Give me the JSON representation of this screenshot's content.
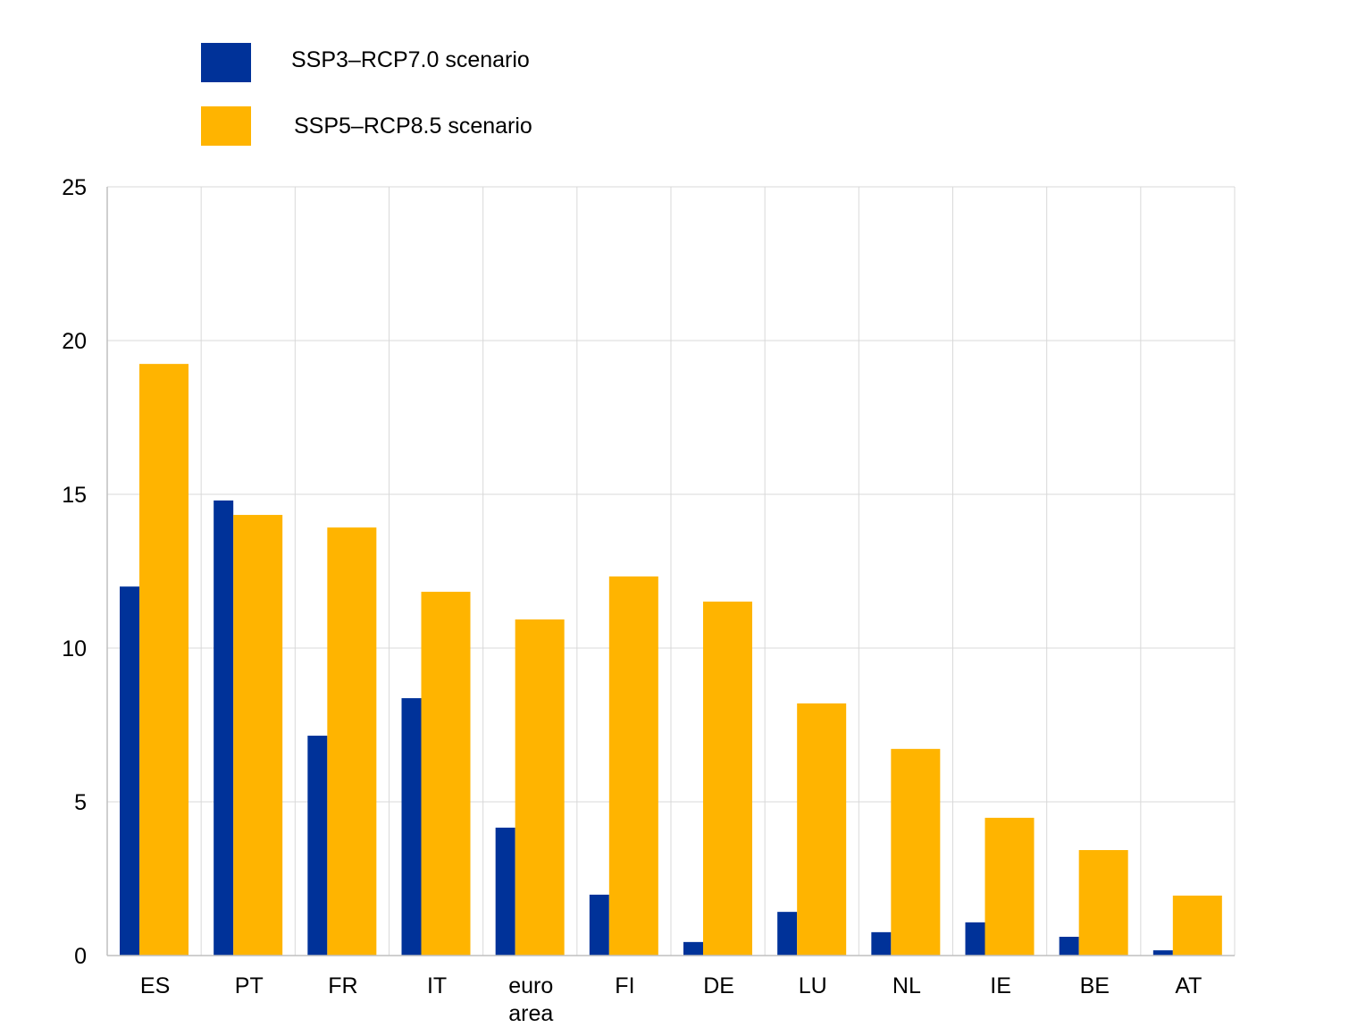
{
  "chart_data": {
    "type": "bar",
    "title": "",
    "xlabel": "",
    "ylabel": "",
    "ylim": [
      0,
      25
    ],
    "yticks": [
      0,
      5,
      10,
      15,
      20,
      25
    ],
    "grid": true,
    "legend_position": "top-left",
    "categories": [
      "ES",
      "PT",
      "FR",
      "IT",
      "euro area",
      "FI",
      "DE",
      "LU",
      "NL",
      "IE",
      "BE",
      "AT"
    ],
    "series": [
      {
        "name": "SSP3–RCP7.0 scenario",
        "color": "#003299",
        "values": [
          12.0,
          14.8,
          7.15,
          8.37,
          4.16,
          1.98,
          0.44,
          1.42,
          0.76,
          1.08,
          0.61,
          0.17
        ]
      },
      {
        "name": "SSP5–RCP8.5 scenario",
        "color": "#FFB400",
        "values": [
          19.24,
          14.33,
          13.92,
          11.83,
          10.93,
          12.33,
          11.51,
          8.2,
          6.72,
          4.48,
          3.43,
          1.95
        ]
      }
    ]
  }
}
